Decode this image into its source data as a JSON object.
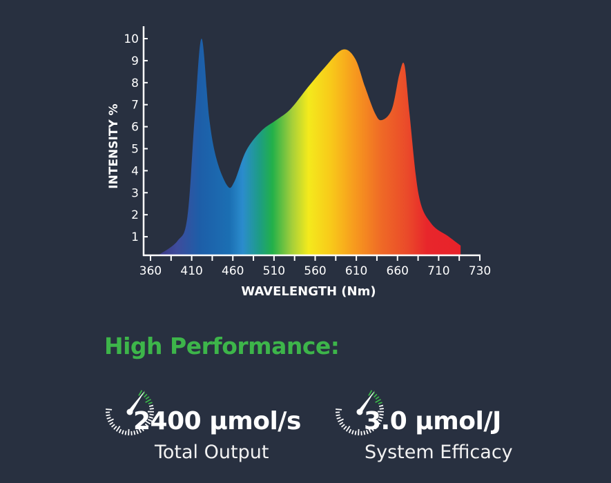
{
  "chart_data": {
    "type": "area",
    "xlabel": "WAVELENGTH (Nm)",
    "ylabel": "INTENSITY %",
    "x_tick_labels": [
      "360",
      "410",
      "460",
      "510",
      "560",
      "610",
      "660",
      "710",
      "730"
    ],
    "y_ticks": [
      1,
      2,
      3,
      4,
      5,
      6,
      7,
      8,
      9,
      10
    ],
    "ylim": [
      0,
      10.5
    ],
    "xlim": [
      360,
      730
    ],
    "grid": false,
    "fill": "visible-spectrum color gradient",
    "x": [
      369,
      392,
      404,
      413,
      421,
      430,
      439,
      452,
      460,
      474,
      492,
      510,
      527,
      548,
      568,
      589,
      604,
      616,
      628,
      636,
      648,
      657,
      663,
      669,
      680,
      695,
      716,
      730
    ],
    "y": [
      0.15,
      0.8,
      1.9,
      6.6,
      10.0,
      6.4,
      4.5,
      3.3,
      3.5,
      4.9,
      5.8,
      6.3,
      6.8,
      7.8,
      8.7,
      9.5,
      9.1,
      7.8,
      6.6,
      6.3,
      6.8,
      8.4,
      8.8,
      6.6,
      2.9,
      1.6,
      1.0,
      0.6
    ]
  },
  "colors": {
    "background": "#283040",
    "accent_green": "#3db54a",
    "text": "#ffffff"
  },
  "performance": {
    "title": "High Performance:",
    "stats": [
      {
        "icon": "gauge-icon",
        "value": "2400 µmol/s",
        "label": "Total Output"
      },
      {
        "icon": "gauge-icon",
        "value": "3.0 µmol/J",
        "label": "System Efficacy"
      }
    ]
  }
}
